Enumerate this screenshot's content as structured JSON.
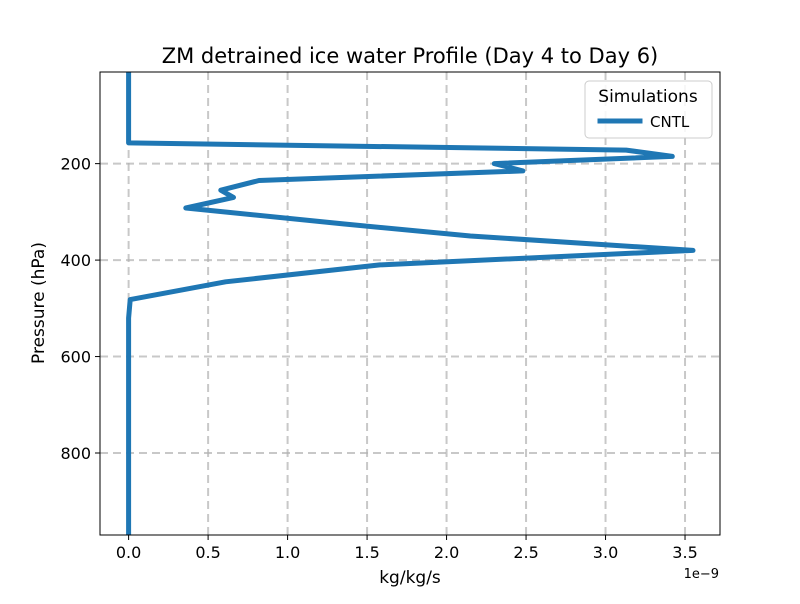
{
  "chart_data": {
    "type": "line",
    "title": "ZM detrained ice water Profile (Day 4 to Day 6)",
    "xlabel": "kg/kg/s",
    "ylabel": "Pressure (hPa)",
    "x_offset_label": "1e−9",
    "xlim": [
      -0.18,
      3.72
    ],
    "ylim": [
      970,
      10
    ],
    "y_inverted": true,
    "xticks": [
      0.0,
      0.5,
      1.0,
      1.5,
      2.0,
      2.5,
      3.0,
      3.5
    ],
    "xtick_labels": [
      "0.0",
      "0.5",
      "1.0",
      "1.5",
      "2.0",
      "2.5",
      "3.0",
      "3.5"
    ],
    "yticks": [
      200,
      400,
      600,
      800
    ],
    "ytick_labels": [
      "200",
      "400",
      "600",
      "800"
    ],
    "grid": true,
    "legend": {
      "title": "Simulations",
      "position": "top-right"
    },
    "series": [
      {
        "name": "CNTL",
        "color": "#1f77b4",
        "x": [
          0.0,
          0.0,
          0.0,
          3.13,
          3.42,
          2.3,
          2.48,
          0.82,
          0.58,
          0.66,
          0.36,
          1.35,
          2.15,
          3.55,
          1.58,
          0.61,
          0.01,
          0.0,
          0.0,
          0.0,
          0.0
        ],
        "y": [
          10,
          100,
          157,
          172,
          185,
          200,
          215,
          235,
          255,
          270,
          292,
          325,
          350,
          380,
          410,
          445,
          482,
          520,
          600,
          800,
          970
        ]
      }
    ]
  }
}
